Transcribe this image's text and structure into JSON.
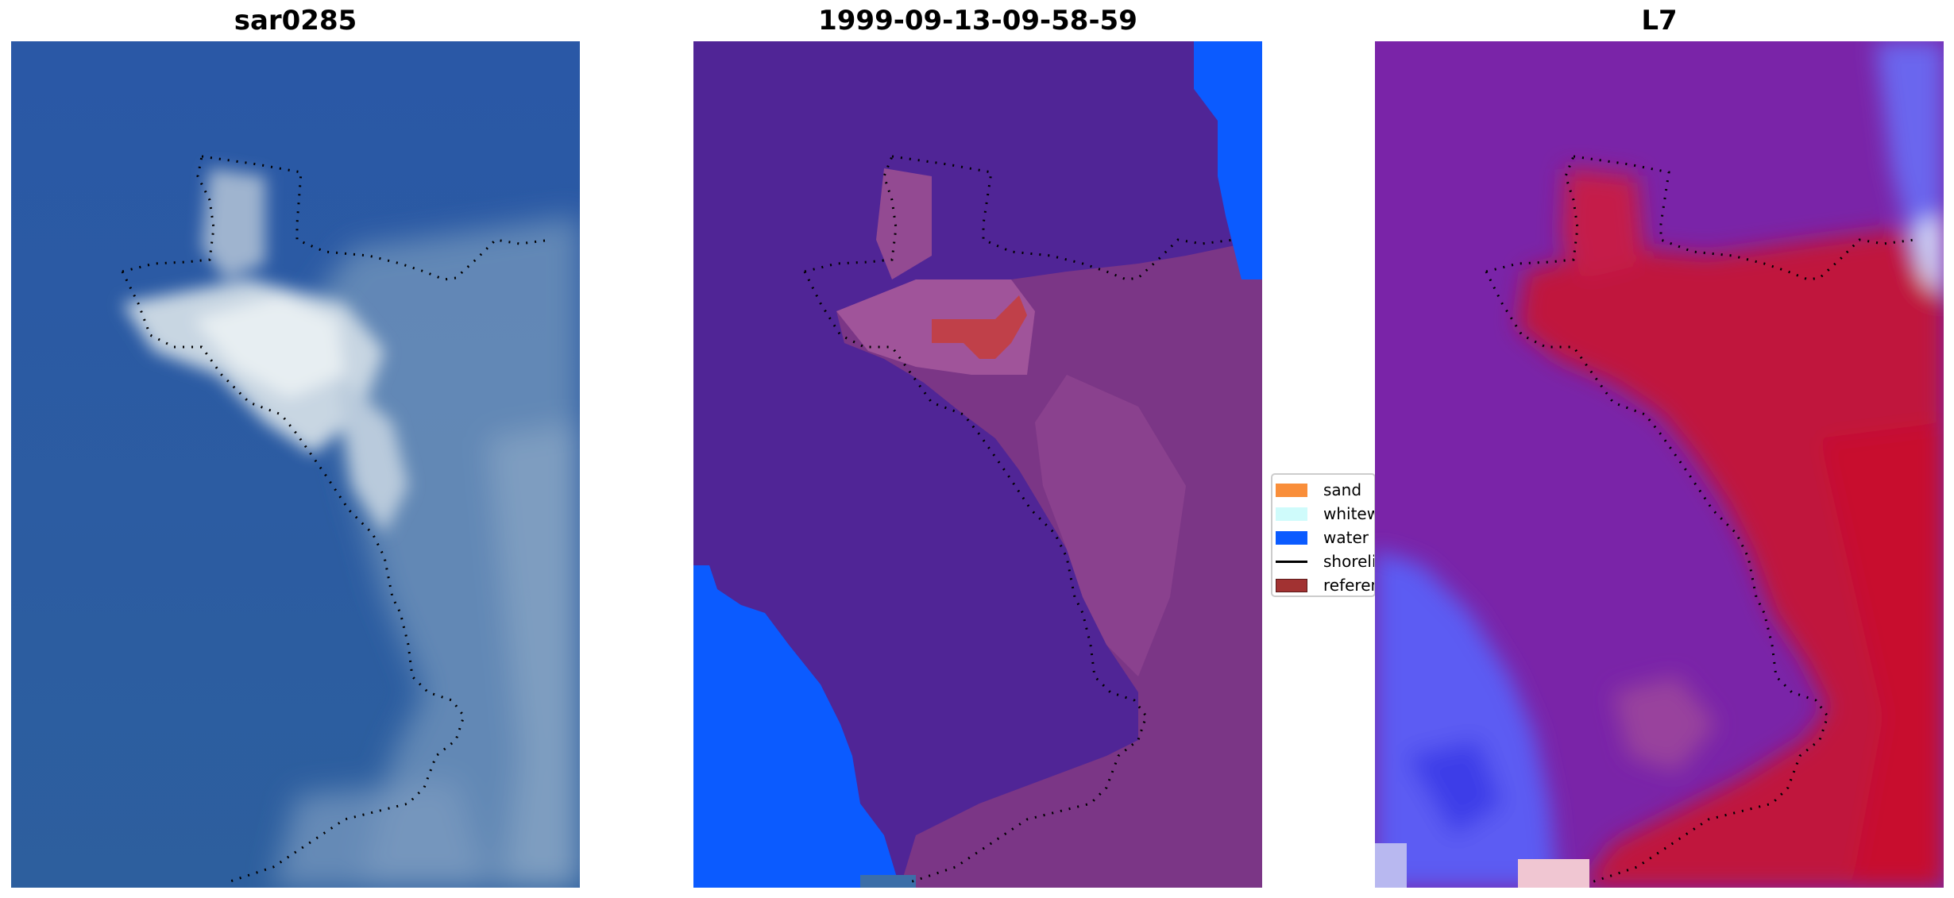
{
  "panels": [
    {
      "title": "sar0285"
    },
    {
      "title": "1999-09-13-09-58-59"
    },
    {
      "title": "L7"
    }
  ],
  "legend": {
    "items": [
      {
        "label": "sand",
        "color": "#f98e3a"
      },
      {
        "label": "whitewater",
        "color": "#cffbfb"
      },
      {
        "label": "water",
        "color": "#0b5bff"
      },
      {
        "label": "shoreline",
        "color": "#000000"
      },
      {
        "label": "reference shoreline",
        "color": "#a23232"
      }
    ]
  },
  "colors": {
    "sea_blue": "#2b5aa3",
    "classified_water": "#0b5bff",
    "classified_background": "#502596",
    "classified_land": "#7f3a8a",
    "index_high": "#c0153d",
    "index_mid": "#7a24a8",
    "index_low": "#5b5cf3"
  }
}
